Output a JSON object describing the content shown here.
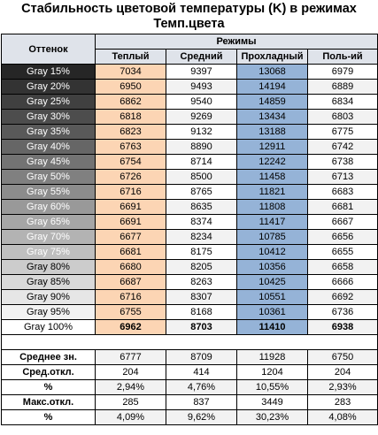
{
  "title": "Стабильность цветовой температуры (K) в режимах Темп.цвета",
  "headers": {
    "shade": "Оттенок",
    "modes": "Режимы",
    "warm": "Теплый",
    "medium": "Средний",
    "cool": "Прохладный",
    "user": "Поль-ий"
  },
  "rows": [
    {
      "label": "Gray 15%",
      "warm": "7034",
      "medium": "9397",
      "cool": "13068",
      "user": "6979",
      "bg": "#262626"
    },
    {
      "label": "Gray 20%",
      "warm": "6950",
      "medium": "9493",
      "cool": "14194",
      "user": "6889",
      "bg": "#333333"
    },
    {
      "label": "Gray 25%",
      "warm": "6862",
      "medium": "9540",
      "cool": "14859",
      "user": "6834",
      "bg": "#404040"
    },
    {
      "label": "Gray 30%",
      "warm": "6818",
      "medium": "9269",
      "cool": "13434",
      "user": "6803",
      "bg": "#4d4d4d"
    },
    {
      "label": "Gray 35%",
      "warm": "6823",
      "medium": "9132",
      "cool": "13188",
      "user": "6775",
      "bg": "#595959"
    },
    {
      "label": "Gray 40%",
      "warm": "6763",
      "medium": "8890",
      "cool": "12911",
      "user": "6742",
      "bg": "#666666"
    },
    {
      "label": "Gray 45%",
      "warm": "6754",
      "medium": "8714",
      "cool": "12242",
      "user": "6738",
      "bg": "#737373"
    },
    {
      "label": "Gray 50%",
      "warm": "6726",
      "medium": "8500",
      "cool": "11458",
      "user": "6713",
      "bg": "#808080"
    },
    {
      "label": "Gray 55%",
      "warm": "6716",
      "medium": "8765",
      "cool": "11821",
      "user": "6683",
      "bg": "#8c8c8c"
    },
    {
      "label": "Gray 60%",
      "warm": "6691",
      "medium": "8635",
      "cool": "11808",
      "user": "6681",
      "bg": "#999999"
    },
    {
      "label": "Gray 65%",
      "warm": "6691",
      "medium": "8374",
      "cool": "11417",
      "user": "6667",
      "bg": "#a6a6a6"
    },
    {
      "label": "Gray 70%",
      "warm": "6677",
      "medium": "8234",
      "cool": "10785",
      "user": "6656",
      "bg": "#b3b3b3"
    },
    {
      "label": "Gray 75%",
      "warm": "6681",
      "medium": "8175",
      "cool": "10412",
      "user": "6655",
      "bg": "#bfbfbf"
    },
    {
      "label": "Gray 80%",
      "warm": "6680",
      "medium": "8205",
      "cool": "10356",
      "user": "6658",
      "bg": "#cccccc"
    },
    {
      "label": "Gray 85%",
      "warm": "6687",
      "medium": "8263",
      "cool": "10425",
      "user": "6666",
      "bg": "#d9d9d9"
    },
    {
      "label": "Gray 90%",
      "warm": "6716",
      "medium": "8307",
      "cool": "10551",
      "user": "6692",
      "bg": "#e6e6e6"
    },
    {
      "label": "Gray 95%",
      "warm": "6755",
      "medium": "8168",
      "cool": "10361",
      "user": "6736",
      "bg": "#f2f2f2"
    },
    {
      "label": "Gray 100%",
      "warm": "6962",
      "medium": "8703",
      "cool": "11410",
      "user": "6938",
      "bg": "#ffffff"
    }
  ],
  "stats": [
    {
      "label": "Среднее зн.",
      "warm": "6777",
      "medium": "8709",
      "cool": "11928",
      "user": "6750"
    },
    {
      "label": "Сред.откл.",
      "warm": "204",
      "medium": "414",
      "cool": "1204",
      "user": "204"
    },
    {
      "label": "%",
      "warm": "2,94%",
      "medium": "4,76%",
      "cool": "10,55%",
      "user": "2,93%"
    },
    {
      "label": "Макс.откл.",
      "warm": "285",
      "medium": "837",
      "cool": "3449",
      "user": "283"
    },
    {
      "label": "%",
      "warm": "4,09%",
      "medium": "9,62%",
      "cool": "30,23%",
      "user": "4,08%"
    }
  ],
  "colors": {
    "warm": "#fcd5b4",
    "cool": "#95b3d7",
    "header": "#dfe3ea"
  }
}
